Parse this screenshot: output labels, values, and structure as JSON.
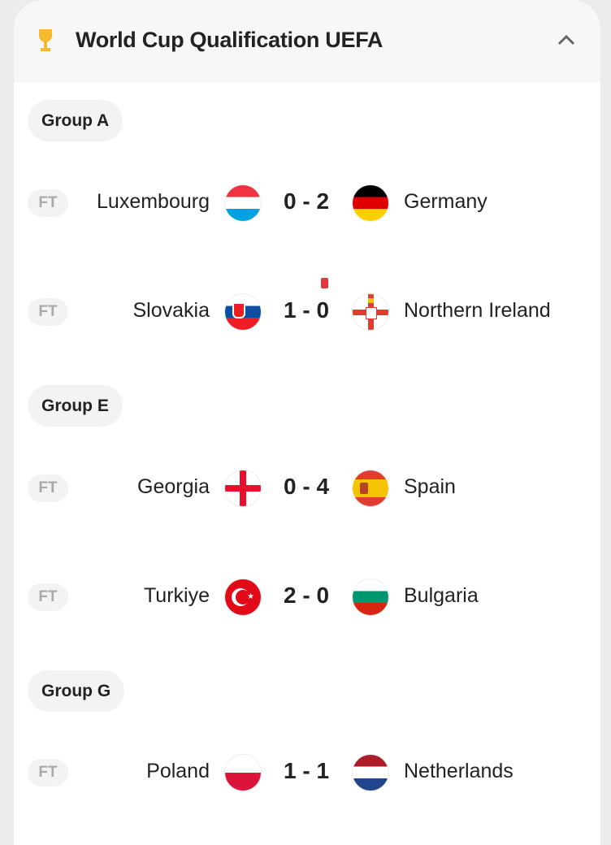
{
  "header": {
    "title": "World Cup Qualification UEFA",
    "icon": "trophy-icon",
    "collapse_icon": "chevron-up-icon"
  },
  "groups": [
    {
      "name": "Group A",
      "matches": [
        {
          "status": "FT",
          "home": "Luxembourg",
          "score": "0 - 2",
          "away": "Germany",
          "away_red_card": false
        },
        {
          "status": "FT",
          "home": "Slovakia",
          "score": "1 - 0",
          "away": "Northern Ireland",
          "away_red_card": true
        }
      ]
    },
    {
      "name": "Group E",
      "matches": [
        {
          "status": "FT",
          "home": "Georgia",
          "score": "0 - 4",
          "away": "Spain",
          "away_red_card": false
        },
        {
          "status": "FT",
          "home": "Turkiye",
          "score": "2 - 0",
          "away": "Bulgaria",
          "away_red_card": false
        }
      ]
    },
    {
      "name": "Group G",
      "matches": [
        {
          "status": "FT",
          "home": "Poland",
          "score": "1 - 1",
          "away": "Netherlands",
          "away_red_card": false
        }
      ]
    }
  ],
  "colors": {
    "red_card": "#e0383e",
    "trophy": "#f5b82e"
  }
}
